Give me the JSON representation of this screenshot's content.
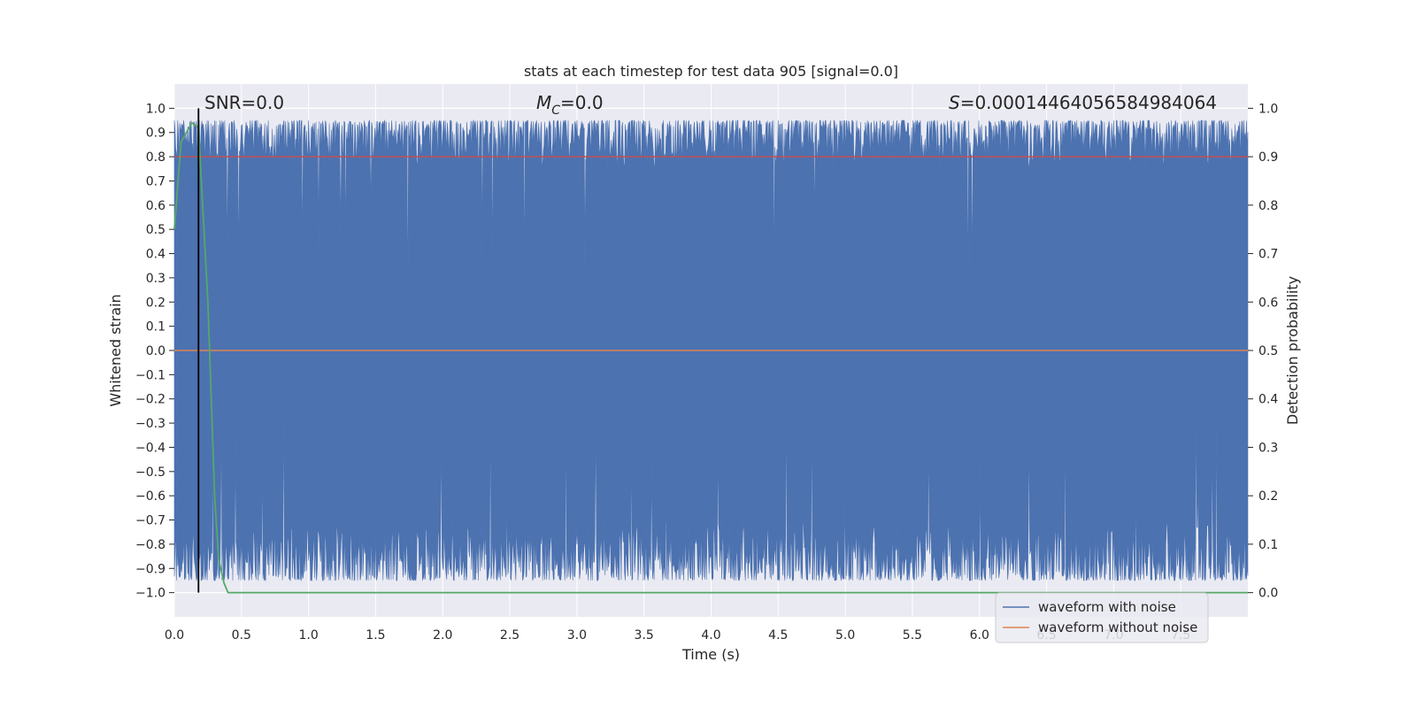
{
  "chart_data": {
    "type": "line",
    "title": "stats at each timestep for test data 905 [signal=0.0]",
    "xlabel": "Time (s)",
    "ylabel_left": "Whitened strain",
    "ylabel_right": "Detection probability",
    "xlim": [
      0.0,
      8.0
    ],
    "ylim_left": [
      -1.1,
      1.1
    ],
    "ylim_right": [
      -0.05,
      1.05
    ],
    "x_ticks": [
      "0.0",
      "0.5",
      "1.0",
      "1.5",
      "2.0",
      "2.5",
      "3.0",
      "3.5",
      "4.0",
      "4.5",
      "5.0",
      "5.5",
      "6.0",
      "6.5",
      "7.0",
      "7.5"
    ],
    "y_left_ticks": [
      "1.0",
      "0.9",
      "0.8",
      "0.7",
      "0.6",
      "0.5",
      "0.4",
      "0.3",
      "0.2",
      "0.1",
      "0.0",
      "−0.1",
      "−0.2",
      "−0.3",
      "−0.4",
      "−0.5",
      "−0.6",
      "−0.7",
      "−0.8",
      "−0.9",
      "−1.0"
    ],
    "y_right_ticks": [
      "1.0",
      "0.9",
      "0.8",
      "0.7",
      "0.6",
      "0.5",
      "0.4",
      "0.3",
      "0.2",
      "0.1",
      "0.0"
    ],
    "grid": true,
    "legend": {
      "placement": "lower-right",
      "entries": [
        {
          "label": "waveform with noise",
          "color": "#4c72b0"
        },
        {
          "label": "waveform without noise",
          "color": "#dd8452"
        }
      ]
    },
    "annotations": {
      "snr": "SNR=0.0",
      "mc_symbol": "M",
      "mc_sub": "C",
      "mc_value": "=0.0",
      "s_symbol": "S",
      "s_value": "=0.0001446405658498406​4"
    },
    "series": [
      {
        "name": "waveform with noise",
        "axis": "left",
        "kind": "noise-band",
        "x_range": [
          0.0,
          8.0
        ],
        "upper_envelope_approx": 0.95,
        "lower_envelope_approx": -0.95,
        "color": "#4c72b0"
      },
      {
        "name": "waveform without noise",
        "axis": "left",
        "x": [
          0.0,
          8.0
        ],
        "y": [
          0.0,
          0.0
        ],
        "color": "#dd8452"
      },
      {
        "axis": "right",
        "x": [
          0.0,
          0.05,
          0.13,
          0.18,
          0.25,
          0.3,
          0.33,
          0.37,
          0.4,
          8.0
        ],
        "y": [
          0.75,
          0.93,
          0.97,
          0.96,
          0.6,
          0.2,
          0.07,
          0.02,
          0.0,
          0.0
        ],
        "color": "#55a868"
      },
      {
        "axis": "right",
        "x": [
          0.0,
          8.0
        ],
        "y": [
          0.9,
          0.9
        ],
        "color": "#c44e52"
      }
    ],
    "vline": {
      "x": 0.18,
      "color": "#000000"
    }
  }
}
